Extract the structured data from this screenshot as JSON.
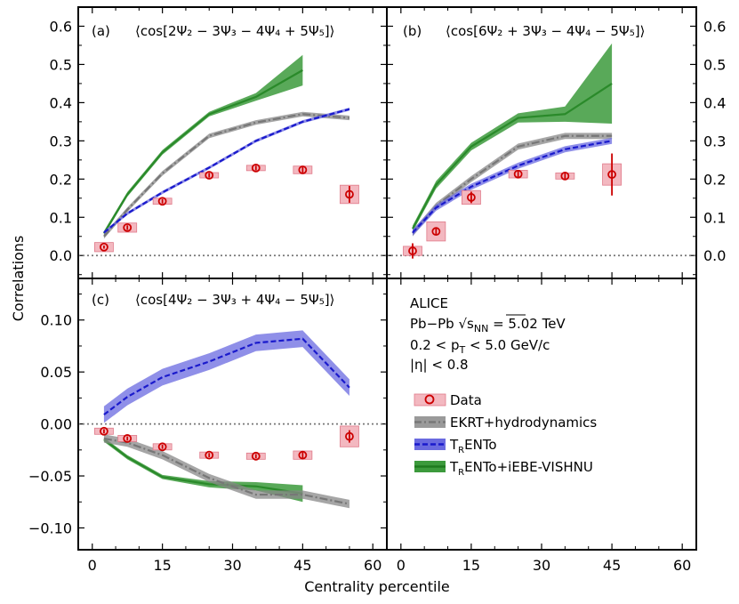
{
  "figure": {
    "xlabel": "Centrality percentile",
    "ylabel": "Correlations"
  },
  "legend": {
    "block": [
      "ALICE",
      "Pb−Pb √s",
      "NN",
      " = 5.02 TeV",
      "0.2 < p",
      "T",
      " < 5.0 GeV/c",
      "|η| < 0.8"
    ],
    "items": [
      {
        "key": "data",
        "label": "Data"
      },
      {
        "key": "ekrt",
        "label": "EKRT+hydrodynamics"
      },
      {
        "key": "trento",
        "label": "T",
        "sub": "R",
        "rest": "ENTo"
      },
      {
        "key": "vishnu",
        "label": "T",
        "sub": "R",
        "rest": "ENTo+iEBE-VISHNU"
      }
    ]
  },
  "colors": {
    "data": "#cc0000",
    "data_box": "#f3b8c0",
    "ekrt": "#888888",
    "trento": "#1a1acc",
    "trento_band": "#6a6ae0",
    "vishnu": "#2a8a2a",
    "vishnu_band": "#3c9a3c"
  },
  "chart_data": [
    {
      "type": "line",
      "panel": "a",
      "tag": "(a)",
      "title": "⟨cos[2Ψ₂ − 3Ψ₃ − 4Ψ₄ + 5Ψ₅]⟩",
      "xlim": [
        -3,
        63
      ],
      "ylim": [
        -0.06,
        0.65
      ],
      "xticks": [
        0,
        15,
        30,
        45,
        60
      ],
      "yticks": [
        0.0,
        0.1,
        0.2,
        0.3,
        0.4,
        0.5,
        0.6
      ],
      "ytick_labels": [
        "0.0",
        "0.1",
        "0.2",
        "0.3",
        "0.4",
        "0.5",
        "0.6"
      ],
      "ytick_side": "left",
      "data": {
        "x": [
          2.5,
          7.5,
          15,
          25,
          35,
          45,
          55
        ],
        "y": [
          0.022,
          0.073,
          0.142,
          0.21,
          0.229,
          0.224,
          0.16
        ],
        "yerr": [
          0.004,
          0.006,
          0.006,
          0.006,
          0.006,
          0.007,
          0.022
        ],
        "syst": [
          0.012,
          0.012,
          0.008,
          0.007,
          0.007,
          0.01,
          0.024
        ]
      },
      "ekrt": {
        "x": [
          2.5,
          7.5,
          15,
          25,
          35,
          45,
          55
        ],
        "y": [
          0.05,
          0.12,
          0.215,
          0.313,
          0.348,
          0.37,
          0.36
        ],
        "band": 0.006
      },
      "trento": {
        "x": [
          2.5,
          7.5,
          15,
          25,
          35,
          45,
          55
        ],
        "y": [
          0.06,
          0.11,
          0.165,
          0.23,
          0.3,
          0.35,
          0.383
        ],
        "band": 0.004
      },
      "vishnu": {
        "x": [
          2.5,
          7.5,
          15,
          25,
          35,
          45
        ],
        "y": [
          0.058,
          0.16,
          0.27,
          0.37,
          0.415,
          0.485
        ],
        "band": [
          0.006,
          0.006,
          0.006,
          0.006,
          0.01,
          0.04
        ]
      }
    },
    {
      "type": "line",
      "panel": "b",
      "tag": "(b)",
      "title": "⟨cos[6Ψ₂ + 3Ψ₃ − 4Ψ₄ − 5Ψ₅]⟩",
      "xlim": [
        -3,
        63
      ],
      "ylim": [
        -0.06,
        0.65
      ],
      "xticks": [
        0,
        15,
        30,
        45,
        60
      ],
      "yticks": [
        0.0,
        0.1,
        0.2,
        0.3,
        0.4,
        0.5,
        0.6
      ],
      "ytick_labels": [
        "0.0",
        "0.1",
        "0.2",
        "0.3",
        "0.4",
        "0.5",
        "0.6"
      ],
      "ytick_side": "right",
      "data": {
        "x": [
          2.5,
          7.5,
          15,
          25,
          35,
          45
        ],
        "y": [
          0.012,
          0.063,
          0.152,
          0.213,
          0.208,
          0.212
        ],
        "yerr": [
          0.02,
          0.01,
          0.015,
          0.008,
          0.008,
          0.055
        ],
        "syst": [
          0.012,
          0.025,
          0.018,
          0.01,
          0.008,
          0.028
        ]
      },
      "ekrt": {
        "x": [
          2.5,
          7.5,
          15,
          25,
          35,
          45
        ],
        "y": [
          0.058,
          0.13,
          0.2,
          0.285,
          0.313,
          0.313
        ],
        "band": 0.008
      },
      "trento": {
        "x": [
          2.5,
          7.5,
          15,
          25,
          35,
          45
        ],
        "y": [
          0.06,
          0.125,
          0.18,
          0.235,
          0.278,
          0.3
        ],
        "band": 0.008
      },
      "vishnu": {
        "x": [
          2.5,
          7.5,
          15,
          25,
          35,
          45
        ],
        "y": [
          0.07,
          0.185,
          0.285,
          0.36,
          0.37,
          0.45
        ],
        "band": [
          0.008,
          0.01,
          0.01,
          0.012,
          0.02,
          0.105
        ]
      }
    },
    {
      "type": "line",
      "panel": "c",
      "tag": "(c)",
      "title": "⟨cos[4Ψ₂ − 3Ψ₃ + 4Ψ₄ − 5Ψ₅]⟩",
      "xlim": [
        -3,
        63
      ],
      "ylim": [
        -0.121,
        0.14
      ],
      "xticks": [
        0,
        15,
        30,
        45,
        60
      ],
      "xtick_labels": [
        "0",
        "15",
        "30",
        "45",
        "60"
      ],
      "yticks": [
        -0.1,
        -0.05,
        0.0,
        0.05,
        0.1
      ],
      "ytick_labels": [
        "−0.10",
        "−0.05",
        "0.00",
        "0.05",
        "0.10"
      ],
      "ytick_side": "left",
      "data": {
        "x": [
          2.5,
          7.5,
          15,
          25,
          35,
          45,
          55
        ],
        "y": [
          -0.007,
          -0.014,
          -0.022,
          -0.03,
          -0.031,
          -0.03,
          -0.012
        ],
        "yerr": [
          0.002,
          0.002,
          0.002,
          0.002,
          0.002,
          0.003,
          0.006
        ],
        "syst": [
          0.003,
          0.003,
          0.003,
          0.003,
          0.003,
          0.004,
          0.01
        ]
      },
      "ekrt": {
        "x": [
          2.5,
          7.5,
          15,
          25,
          35,
          45,
          55
        ],
        "y": [
          -0.014,
          -0.018,
          -0.03,
          -0.052,
          -0.068,
          -0.068,
          -0.077
        ],
        "band": 0.004
      },
      "trento": {
        "x": [
          2.5,
          7.5,
          15,
          25,
          35,
          45,
          55
        ],
        "y": [
          0.009,
          0.026,
          0.045,
          0.06,
          0.078,
          0.082,
          0.035
        ],
        "band": 0.008
      },
      "vishnu": {
        "x": [
          2.5,
          7.5,
          15,
          25,
          35,
          45
        ],
        "y": [
          -0.015,
          -0.032,
          -0.051,
          -0.058,
          -0.06,
          -0.067
        ],
        "band": [
          0.002,
          0.002,
          0.002,
          0.003,
          0.004,
          0.008
        ]
      }
    },
    {
      "type": "legend-panel",
      "panel": "d",
      "xlim": [
        -3,
        63
      ],
      "xticks": [
        0,
        15,
        30,
        45,
        60
      ],
      "xtick_labels": [
        "0",
        "15",
        "30",
        "45",
        "60"
      ]
    }
  ]
}
